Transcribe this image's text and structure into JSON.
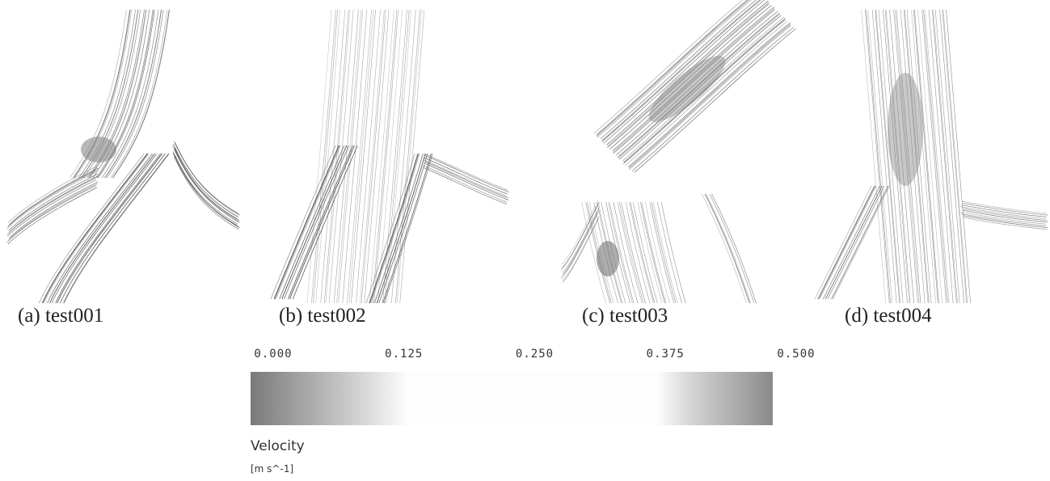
{
  "panels": [
    {
      "caption": "(a) test001"
    },
    {
      "caption": "(b) test002"
    },
    {
      "caption": "(c) test003"
    },
    {
      "caption": "(d) test004"
    }
  ],
  "colorbar": {
    "ticks": [
      {
        "value": 0,
        "label": "0.000"
      },
      {
        "value": 0.125,
        "label": "0.125"
      },
      {
        "value": 0.25,
        "label": "0.250"
      },
      {
        "value": 0.375,
        "label": "0.375"
      },
      {
        "value": 0.5,
        "label": "0.500"
      }
    ],
    "title": "Velocity",
    "units": "[m s^-1]"
  }
}
